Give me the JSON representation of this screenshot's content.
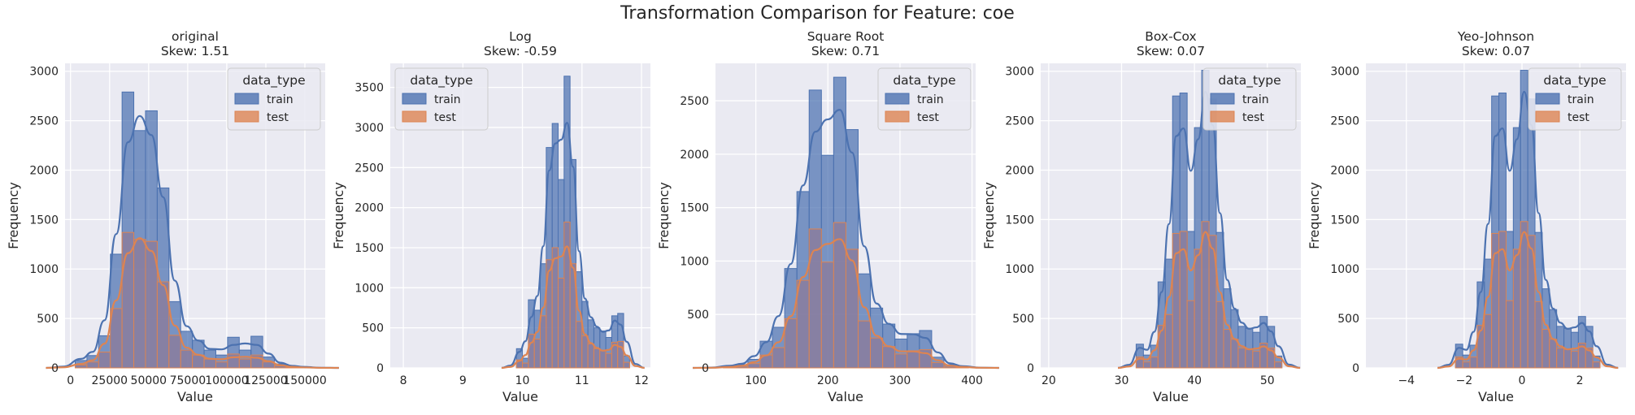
{
  "suptitle": "Transformation Comparison for Feature: coe",
  "colors": {
    "train": "#4c72b0",
    "test": "#dd8452",
    "overlap": "#8a7c9e",
    "panel_bg": "#eaeaf2",
    "grid": "#ffffff"
  },
  "chart_data": [
    {
      "type": "bar",
      "title": "original",
      "subtitle": "Skew: 1.51",
      "xlabel": "Value",
      "ylabel": "Frequency",
      "xlim": [
        -3500,
        163000
      ],
      "ylim": [
        0,
        3080
      ],
      "xticks": [
        0,
        25000,
        50000,
        75000,
        100000,
        125000,
        150000
      ],
      "xtick_labels": [
        "0",
        "25000",
        "50000",
        "75000",
        "100000",
        "125000",
        "150000"
      ],
      "yticks": [
        0,
        500,
        1000,
        1500,
        2000,
        2500,
        3000
      ],
      "ytick_labels": [
        "0",
        "500",
        "1000",
        "1500",
        "2000",
        "2500",
        "3000"
      ],
      "bin_edges": [
        3000,
        10500,
        18000,
        25500,
        33000,
        40500,
        48000,
        55500,
        63000,
        70500,
        78000,
        85500,
        93000,
        100500,
        108000,
        115500,
        123000,
        130500,
        138000,
        145500,
        153000
      ],
      "series": [
        {
          "name": "train",
          "counts": [
            75,
            125,
            325,
            1150,
            2790,
            2400,
            2600,
            1820,
            670,
            370,
            280,
            180,
            130,
            310,
            180,
            320,
            110,
            40,
            20,
            5
          ]
        },
        {
          "name": "test",
          "counts": [
            30,
            60,
            160,
            600,
            1370,
            1300,
            1280,
            870,
            330,
            180,
            130,
            90,
            60,
            140,
            90,
            130,
            60,
            20,
            10,
            2
          ]
        }
      ],
      "legend_title": "data_type",
      "legend_position": "top-right"
    },
    {
      "type": "bar",
      "title": "Log",
      "subtitle": "Skew: -0.59",
      "xlabel": "Value",
      "ylabel": "Frequency",
      "xlim": [
        7.78,
        12.15
      ],
      "ylim": [
        0,
        3800
      ],
      "xticks": [
        8,
        9,
        10,
        11,
        12
      ],
      "xtick_labels": [
        "8",
        "9",
        "10",
        "11",
        "12"
      ],
      "yticks": [
        0,
        500,
        1000,
        1500,
        2000,
        2500,
        3000,
        3500
      ],
      "ytick_labels": [
        "0",
        "500",
        "1000",
        "1500",
        "2000",
        "2500",
        "3000",
        "3500"
      ],
      "bin_edges": [
        9.9,
        10.0,
        10.1,
        10.2,
        10.3,
        10.4,
        10.5,
        10.6,
        10.7,
        10.8,
        10.9,
        11.0,
        11.1,
        11.2,
        11.3,
        11.4,
        11.5,
        11.6,
        11.7,
        11.8
      ],
      "series": [
        {
          "name": "train",
          "counts": [
            240,
            120,
            850,
            720,
            1300,
            2750,
            3050,
            2350,
            3640,
            2600,
            1200,
            830,
            600,
            500,
            460,
            380,
            650,
            680,
            150
          ]
        },
        {
          "name": "test",
          "counts": [
            100,
            60,
            420,
            360,
            650,
            1350,
            1500,
            1120,
            1820,
            1300,
            580,
            400,
            300,
            240,
            220,
            180,
            320,
            330,
            70
          ]
        }
      ],
      "legend_title": "data_type",
      "legend_position": "top-left"
    },
    {
      "type": "bar",
      "title": "Square Root",
      "subtitle": "Skew: 0.71",
      "xlabel": "Value",
      "ylabel": "Frequency",
      "xlim": [
        44,
        405
      ],
      "ylim": [
        0,
        2850
      ],
      "xticks": [
        100,
        200,
        300,
        400
      ],
      "xtick_labels": [
        "100",
        "200",
        "300",
        "400"
      ],
      "yticks": [
        0,
        500,
        1000,
        1500,
        2000,
        2500
      ],
      "ytick_labels": [
        "0",
        "500",
        "1000",
        "1500",
        "2000",
        "2500"
      ],
      "bin_edges": [
        55,
        72,
        89,
        106,
        123,
        140,
        157,
        174,
        191,
        208,
        225,
        242,
        259,
        276,
        293,
        310,
        327,
        344,
        361,
        378,
        395
      ],
      "series": [
        {
          "name": "train",
          "counts": [
            15,
            30,
            80,
            250,
            380,
            930,
            1650,
            2600,
            1990,
            2720,
            2230,
            880,
            560,
            410,
            270,
            320,
            350,
            100,
            30,
            10
          ]
        },
        {
          "name": "test",
          "counts": [
            5,
            15,
            40,
            120,
            190,
            460,
            820,
            1300,
            990,
            1360,
            1110,
            440,
            280,
            200,
            130,
            160,
            170,
            50,
            15,
            5
          ]
        }
      ],
      "legend_title": "data_type",
      "legend_position": "top-right"
    },
    {
      "type": "bar",
      "title": "Box-Cox",
      "subtitle": "Skew: 0.07",
      "xlabel": "Value",
      "ylabel": "Frequency",
      "xlim": [
        18.9,
        54.6
      ],
      "ylim": [
        0,
        3080
      ],
      "xticks": [
        20,
        30,
        40,
        50
      ],
      "xtick_labels": [
        "20",
        "30",
        "40",
        "50"
      ],
      "yticks": [
        0,
        500,
        1000,
        1500,
        2000,
        2500,
        3000
      ],
      "ytick_labels": [
        "0",
        "500",
        "1000",
        "1500",
        "2000",
        "2500",
        "3000"
      ],
      "bin_edges": [
        32.0,
        33.0,
        34.0,
        35.0,
        36.0,
        37.0,
        38.0,
        39.0,
        40.0,
        41.0,
        42.0,
        43.0,
        44.0,
        45.0,
        46.0,
        47.0,
        48.0,
        49.0,
        50.0,
        51.0,
        52.0
      ],
      "series": [
        {
          "name": "train",
          "counts": [
            240,
            130,
            230,
            870,
            1100,
            2750,
            2780,
            1380,
            2430,
            3010,
            2720,
            1370,
            800,
            590,
            420,
            400,
            360,
            520,
            420,
            120
          ]
        },
        {
          "name": "test",
          "counts": [
            110,
            60,
            110,
            430,
            540,
            1360,
            1380,
            680,
            1200,
            1480,
            1340,
            670,
            390,
            290,
            200,
            190,
            170,
            250,
            200,
            60
          ]
        }
      ],
      "legend_title": "data_type",
      "legend_position": "top-right"
    },
    {
      "type": "bar",
      "title": "Yeo-Johnson",
      "subtitle": "Skew: 0.07",
      "xlabel": "Value",
      "ylabel": "Frequency",
      "xlim": [
        -5.4,
        3.6
      ],
      "ylim": [
        0,
        3080
      ],
      "xticks": [
        -4,
        -2,
        0,
        2
      ],
      "xtick_labels": [
        "−4",
        "−2",
        "0",
        "2"
      ],
      "yticks": [
        0,
        500,
        1000,
        1500,
        2000,
        2500,
        3000
      ],
      "ytick_labels": [
        "0",
        "500",
        "1000",
        "1500",
        "2000",
        "2500",
        "3000"
      ],
      "bin_edges": [
        -2.3,
        -2.05,
        -1.8,
        -1.55,
        -1.3,
        -1.05,
        -0.8,
        -0.55,
        -0.3,
        -0.05,
        0.2,
        0.45,
        0.7,
        0.95,
        1.2,
        1.45,
        1.7,
        1.95,
        2.2,
        2.45,
        2.7
      ],
      "series": [
        {
          "name": "train",
          "counts": [
            240,
            130,
            230,
            870,
            1100,
            2750,
            2780,
            1380,
            2430,
            3010,
            2720,
            1370,
            800,
            590,
            420,
            400,
            360,
            520,
            420,
            120
          ]
        },
        {
          "name": "test",
          "counts": [
            110,
            60,
            110,
            430,
            540,
            1360,
            1380,
            680,
            1200,
            1480,
            1340,
            670,
            390,
            290,
            200,
            190,
            170,
            250,
            200,
            60
          ]
        }
      ],
      "legend_title": "data_type",
      "legend_position": "top-right"
    }
  ]
}
